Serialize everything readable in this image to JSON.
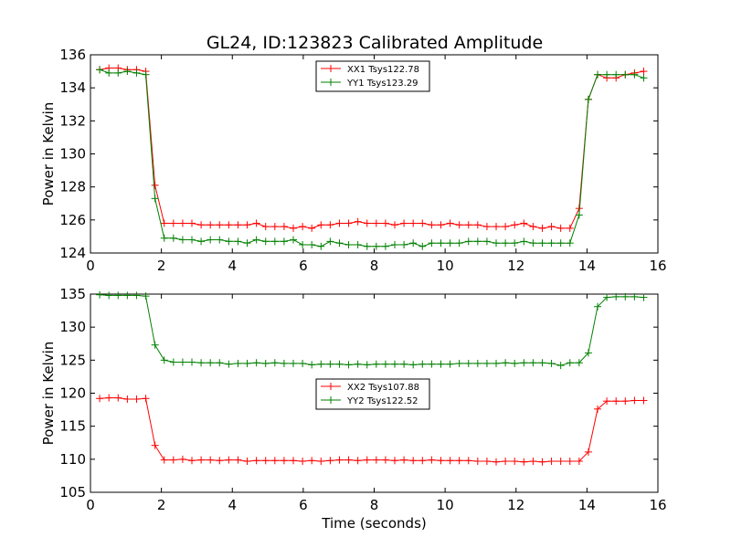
{
  "figure": {
    "title": "GL24, ID:123823 Calibrated Amplitude"
  },
  "chart_data": [
    {
      "type": "line",
      "title": "GL24, ID:123823 Calibrated Amplitude",
      "xlabel": "",
      "ylabel": "Power in Kelvin",
      "xlim": [
        0,
        16
      ],
      "ylim": [
        124,
        136
      ],
      "xticks": [
        0,
        2,
        4,
        6,
        8,
        10,
        12,
        14,
        16
      ],
      "yticks": [
        124,
        126,
        128,
        130,
        132,
        134,
        136
      ],
      "grid": false,
      "legend_position": "top-center",
      "x": [
        0.26,
        0.52,
        0.78,
        1.04,
        1.3,
        1.56,
        1.82,
        2.08,
        2.34,
        2.6,
        2.86,
        3.12,
        3.38,
        3.64,
        3.9,
        4.16,
        4.42,
        4.68,
        4.94,
        5.2,
        5.46,
        5.72,
        5.98,
        6.24,
        6.5,
        6.76,
        7.02,
        7.28,
        7.54,
        7.8,
        8.06,
        8.32,
        8.58,
        8.84,
        9.1,
        9.36,
        9.62,
        9.88,
        10.14,
        10.4,
        10.66,
        10.92,
        11.18,
        11.44,
        11.7,
        11.96,
        12.22,
        12.48,
        12.74,
        13.0,
        13.26,
        13.52,
        13.78,
        14.04,
        14.3,
        14.56,
        14.82,
        15.08,
        15.34,
        15.6
      ],
      "series": [
        {
          "name": "XX1 Tsys122.78",
          "color": "#ff0000",
          "values": [
            135.1,
            135.2,
            135.2,
            135.1,
            135.1,
            135.0,
            128.1,
            125.8,
            125.8,
            125.8,
            125.8,
            125.7,
            125.7,
            125.7,
            125.7,
            125.7,
            125.7,
            125.8,
            125.6,
            125.6,
            125.6,
            125.5,
            125.6,
            125.5,
            125.7,
            125.7,
            125.8,
            125.8,
            125.9,
            125.8,
            125.8,
            125.8,
            125.7,
            125.8,
            125.8,
            125.8,
            125.7,
            125.7,
            125.8,
            125.7,
            125.7,
            125.7,
            125.6,
            125.6,
            125.6,
            125.7,
            125.8,
            125.6,
            125.5,
            125.6,
            125.5,
            125.5,
            126.7,
            133.3,
            134.8,
            134.6,
            134.6,
            134.8,
            134.9,
            135.0
          ]
        },
        {
          "name": "YY1 Tsys123.29",
          "color": "#008000",
          "values": [
            135.1,
            134.9,
            134.9,
            135.0,
            134.9,
            134.8,
            127.3,
            124.9,
            124.9,
            124.8,
            124.8,
            124.7,
            124.8,
            124.8,
            124.7,
            124.7,
            124.6,
            124.8,
            124.7,
            124.7,
            124.7,
            124.8,
            124.5,
            124.5,
            124.4,
            124.7,
            124.6,
            124.5,
            124.5,
            124.4,
            124.4,
            124.4,
            124.5,
            124.5,
            124.6,
            124.4,
            124.6,
            124.6,
            124.6,
            124.6,
            124.7,
            124.7,
            124.7,
            124.6,
            124.6,
            124.6,
            124.7,
            124.6,
            124.6,
            124.6,
            124.6,
            124.6,
            126.3,
            133.3,
            134.8,
            134.8,
            134.8,
            134.8,
            134.8,
            134.6
          ]
        }
      ]
    },
    {
      "type": "line",
      "title": "",
      "xlabel": "Time (seconds)",
      "ylabel": "Power in Kelvin",
      "xlim": [
        0,
        16
      ],
      "ylim": [
        105,
        135
      ],
      "xticks": [
        0,
        2,
        4,
        6,
        8,
        10,
        12,
        14,
        16
      ],
      "yticks": [
        105,
        110,
        115,
        120,
        125,
        130,
        135
      ],
      "grid": false,
      "legend_position": "center",
      "x": [
        0.26,
        0.52,
        0.78,
        1.04,
        1.3,
        1.56,
        1.82,
        2.08,
        2.34,
        2.6,
        2.86,
        3.12,
        3.38,
        3.64,
        3.9,
        4.16,
        4.42,
        4.68,
        4.94,
        5.2,
        5.46,
        5.72,
        5.98,
        6.24,
        6.5,
        6.76,
        7.02,
        7.28,
        7.54,
        7.8,
        8.06,
        8.32,
        8.58,
        8.84,
        9.1,
        9.36,
        9.62,
        9.88,
        10.14,
        10.4,
        10.66,
        10.92,
        11.18,
        11.44,
        11.7,
        11.96,
        12.22,
        12.48,
        12.74,
        13.0,
        13.26,
        13.52,
        13.78,
        14.04,
        14.3,
        14.56,
        14.82,
        15.08,
        15.34,
        15.6
      ],
      "series": [
        {
          "name": "XX2 Tsys107.88",
          "color": "#ff0000",
          "values": [
            119.2,
            119.3,
            119.3,
            119.1,
            119.1,
            119.2,
            112.1,
            109.9,
            109.9,
            110.0,
            109.8,
            109.9,
            109.9,
            109.8,
            109.9,
            109.9,
            109.7,
            109.8,
            109.8,
            109.8,
            109.8,
            109.8,
            109.7,
            109.8,
            109.7,
            109.8,
            109.9,
            109.9,
            109.8,
            109.9,
            109.9,
            109.9,
            109.8,
            109.9,
            109.8,
            109.8,
            109.9,
            109.8,
            109.8,
            109.8,
            109.8,
            109.7,
            109.7,
            109.6,
            109.7,
            109.7,
            109.6,
            109.7,
            109.6,
            109.7,
            109.7,
            109.7,
            109.7,
            111.1,
            117.6,
            118.8,
            118.8,
            118.8,
            118.9,
            118.9
          ]
        },
        {
          "name": "YY2 Tsys122.52",
          "color": "#008000",
          "values": [
            134.9,
            134.8,
            134.8,
            134.8,
            134.8,
            134.7,
            127.3,
            125.0,
            124.7,
            124.7,
            124.7,
            124.6,
            124.6,
            124.6,
            124.4,
            124.5,
            124.5,
            124.6,
            124.5,
            124.6,
            124.5,
            124.5,
            124.5,
            124.3,
            124.4,
            124.4,
            124.4,
            124.3,
            124.4,
            124.3,
            124.4,
            124.4,
            124.4,
            124.4,
            124.3,
            124.4,
            124.4,
            124.4,
            124.4,
            124.5,
            124.5,
            124.5,
            124.5,
            124.5,
            124.6,
            124.5,
            124.6,
            124.6,
            124.6,
            124.5,
            124.2,
            124.6,
            124.6,
            126.1,
            133.1,
            134.5,
            134.6,
            134.6,
            134.6,
            134.5
          ]
        }
      ]
    }
  ]
}
